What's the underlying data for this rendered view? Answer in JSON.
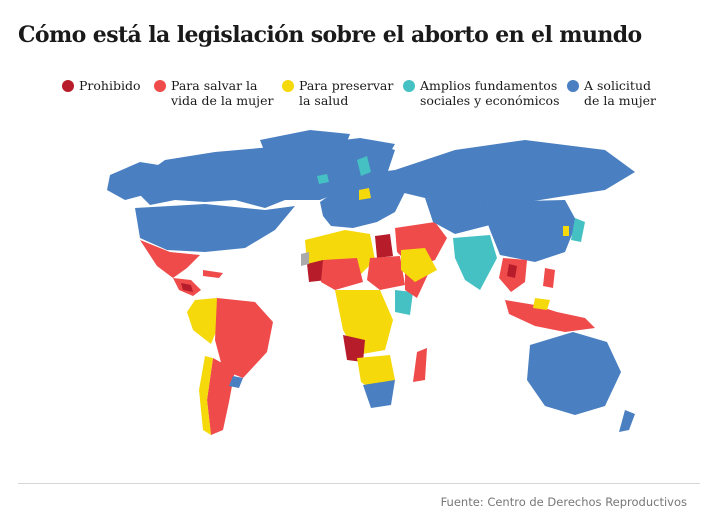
{
  "title": "Cómo está la legislación sobre el aborto en el mundo",
  "legend": [
    {
      "label": "Prohibido",
      "color": "#b71c2a"
    },
    {
      "label": "Para salvar la\nvida de la mujer",
      "color": "#ef4b4b"
    },
    {
      "label": "Para preservar\nla salud",
      "color": "#f5d90a"
    },
    {
      "label": "Amplios fundamentos\nsociales y económicos",
      "color": "#45c1c4"
    },
    {
      "label": "A solicitud\nde la mujer",
      "color": "#4a7fc1"
    }
  ],
  "source": "Fuente: Centro de Derechos Reproductivos"
}
